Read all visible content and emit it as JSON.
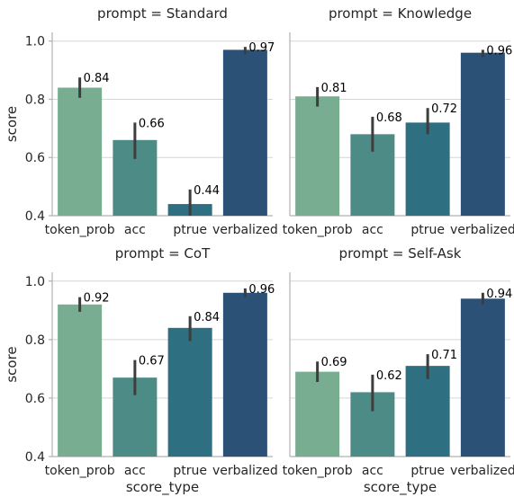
{
  "chart_data": {
    "type": "bar",
    "facet_variable": "prompt",
    "facet_title_format": "prompt = {facet}",
    "xlabel": "score_type",
    "ylabel": "score",
    "ylim": [
      0.4,
      1.03
    ],
    "yticks": [
      "0.4",
      "0.6",
      "0.8",
      "1.0"
    ],
    "categories": [
      "token_prob",
      "acc",
      "ptrue",
      "verbalized"
    ],
    "colors": [
      "#78ad92",
      "#4d8b86",
      "#2e6f82",
      "#2c5176"
    ],
    "grid": "horizontal",
    "facets": [
      {
        "name": "Standard",
        "title": "prompt = Standard",
        "values": [
          0.84,
          0.66,
          0.44,
          0.97
        ],
        "labels": [
          "0.84",
          "0.66",
          "0.44",
          "0.97"
        ],
        "ci": [
          [
            0.805,
            0.875
          ],
          [
            0.595,
            0.72
          ],
          [
            0.4,
            0.49
          ],
          [
            0.955,
            0.98
          ]
        ]
      },
      {
        "name": "Knowledge",
        "title": "prompt = Knowledge",
        "values": [
          0.81,
          0.68,
          0.72,
          0.96
        ],
        "labels": [
          "0.81",
          "0.68",
          "0.72",
          "0.96"
        ],
        "ci": [
          [
            0.775,
            0.842
          ],
          [
            0.62,
            0.74
          ],
          [
            0.68,
            0.77
          ],
          [
            0.945,
            0.97
          ]
        ]
      },
      {
        "name": "CoT",
        "title": "prompt = CoT",
        "values": [
          0.92,
          0.67,
          0.84,
          0.96
        ],
        "labels": [
          "0.92",
          "0.67",
          "0.84",
          "0.96"
        ],
        "ci": [
          [
            0.895,
            0.945
          ],
          [
            0.61,
            0.73
          ],
          [
            0.795,
            0.88
          ],
          [
            0.945,
            0.975
          ]
        ]
      },
      {
        "name": "Self-Ask",
        "title": "prompt = Self-Ask",
        "values": [
          0.69,
          0.62,
          0.71,
          0.94
        ],
        "labels": [
          "0.69",
          "0.62",
          "0.71",
          "0.94"
        ],
        "ci": [
          [
            0.655,
            0.725
          ],
          [
            0.555,
            0.68
          ],
          [
            0.665,
            0.75
          ],
          [
            0.92,
            0.96
          ]
        ]
      }
    ]
  }
}
